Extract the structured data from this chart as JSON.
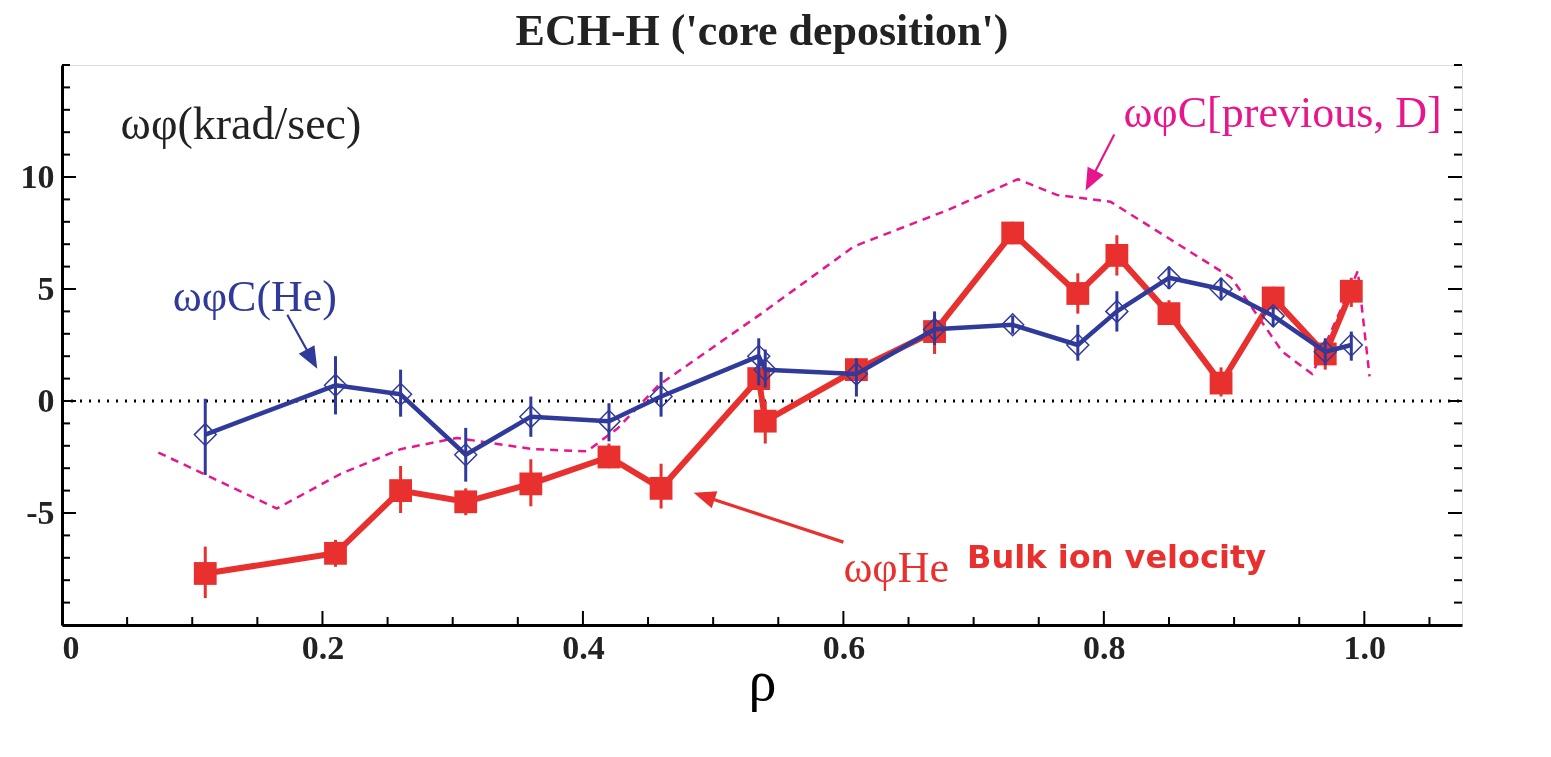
{
  "chart_data": {
    "type": "line",
    "title": "ECH-H ('core deposition')",
    "xlabel": "ρ",
    "ylabel": "ωφ(krad/sec)",
    "xlim": [
      0,
      1.075
    ],
    "ylim": [
      -10,
      15
    ],
    "xticks": [
      0,
      {
        "value": 0.05,
        "label": null
      },
      {
        "value": 0.1,
        "label": null
      },
      {
        "value": 0.15,
        "label": null
      },
      0.2,
      {
        "value": 0.25,
        "label": null
      },
      {
        "value": 0.3,
        "label": null
      },
      {
        "value": 0.35,
        "label": null
      },
      0.4,
      {
        "value": 0.45,
        "label": null
      },
      {
        "value": 0.5,
        "label": null
      },
      {
        "value": 0.55,
        "label": null
      },
      0.6,
      {
        "value": 0.65,
        "label": null
      },
      {
        "value": 0.7,
        "label": null
      },
      {
        "value": 0.75,
        "label": null
      },
      0.8,
      {
        "value": 0.85,
        "label": null
      },
      {
        "value": 0.9,
        "label": null
      },
      {
        "value": 0.95,
        "label": null
      },
      {
        "value": 1,
        "label": "1.0"
      },
      {
        "value": 1.05,
        "label": null
      }
    ],
    "yticks": [
      {
        "value": -10,
        "label": null
      },
      {
        "value": -9,
        "label": null
      },
      {
        "value": -8,
        "label": null
      },
      {
        "value": -7,
        "label": null
      },
      {
        "value": -6,
        "label": null
      },
      -5,
      {
        "value": -4,
        "label": null
      },
      {
        "value": -3,
        "label": null
      },
      {
        "value": -2,
        "label": null
      },
      {
        "value": -1,
        "label": null
      },
      0,
      {
        "value": 1,
        "label": null
      },
      {
        "value": 2,
        "label": null
      },
      {
        "value": 3,
        "label": null
      },
      {
        "value": 4,
        "label": null
      },
      5,
      {
        "value": 6,
        "label": null
      },
      {
        "value": 7,
        "label": null
      },
      {
        "value": 8,
        "label": null
      },
      {
        "value": 9,
        "label": null
      },
      10,
      {
        "value": 11,
        "label": null
      },
      {
        "value": 12,
        "label": null
      },
      {
        "value": 13,
        "label": null
      },
      {
        "value": 14,
        "label": null
      },
      {
        "value": 15,
        "label": null
      }
    ],
    "grid": false,
    "series": [
      {
        "name": "ωφHe",
        "color": "#e8302e",
        "marker": "square",
        "line_style": "solid",
        "x": [
          0.11,
          0.21,
          0.26,
          0.31,
          0.36,
          0.42,
          0.46,
          0.535,
          0.54,
          0.61,
          0.67,
          0.73,
          0.78,
          0.81,
          0.85,
          0.89,
          0.93,
          0.97,
          0.99
        ],
        "values": [
          -7.7,
          -6.8,
          -4.0,
          -4.5,
          -3.7,
          -2.5,
          -3.9,
          1.0,
          -0.9,
          1.4,
          3.1,
          7.5,
          4.8,
          6.5,
          3.9,
          0.8,
          4.6,
          2.1,
          4.9
        ],
        "errors": [
          [
            -8.8,
            -6.5
          ],
          [
            -7.4,
            -6.2
          ],
          [
            -5.0,
            -2.9
          ],
          [
            -5.1,
            -3.9
          ],
          [
            -4.7,
            -2.6
          ],
          [
            -3.0,
            -1.9
          ],
          [
            -4.8,
            -2.8
          ],
          [
            0.5,
            1.5
          ],
          [
            -1.9,
            0.0
          ],
          [
            0.9,
            1.9
          ],
          [
            2.1,
            3.8
          ],
          [
            7.0,
            8.0
          ],
          [
            3.9,
            5.7
          ],
          [
            5.6,
            7.4
          ],
          [
            3.5,
            4.5
          ],
          [
            0.2,
            1.5
          ],
          [
            4.1,
            5.1
          ],
          [
            1.4,
            2.7
          ],
          [
            4.2,
            5.5
          ]
        ]
      },
      {
        "name": "ωφC(He)",
        "color": "#303a9a",
        "marker": "diamond",
        "line_style": "solid",
        "x": [
          0.11,
          0.21,
          0.26,
          0.31,
          0.36,
          0.42,
          0.46,
          0.535,
          0.54,
          0.61,
          0.67,
          0.73,
          0.78,
          0.81,
          0.85,
          0.89,
          0.93,
          0.97,
          0.99
        ],
        "values": [
          -1.5,
          0.7,
          0.3,
          -2.4,
          -0.7,
          -0.9,
          0.2,
          2.0,
          1.4,
          1.2,
          3.2,
          3.4,
          2.5,
          4.0,
          5.5,
          5.0,
          3.8,
          2.2,
          2.5
        ],
        "errors": [
          [
            -3.3,
            0.1
          ],
          [
            -0.6,
            2.0
          ],
          [
            -0.7,
            1.4
          ],
          [
            -3.6,
            -1.2
          ],
          [
            -1.6,
            0.2
          ],
          [
            -1.8,
            -0.1
          ],
          [
            -0.7,
            1.3
          ],
          [
            0.7,
            2.8
          ],
          [
            0.6,
            2.3
          ],
          [
            0.2,
            1.9
          ],
          [
            2.5,
            4.0
          ],
          [
            3.0,
            3.8
          ],
          [
            1.8,
            3.4
          ],
          [
            3.1,
            4.9
          ],
          [
            5.0,
            6.0
          ],
          [
            4.5,
            5.5
          ],
          [
            3.3,
            4.2
          ],
          [
            1.6,
            2.8
          ],
          [
            1.8,
            3.1
          ]
        ]
      },
      {
        "name": "ωφC[previous, D]",
        "color": "#e8168c",
        "marker": "none",
        "line_style": "dashed",
        "x": [
          0.074,
          0.165,
          0.214,
          0.26,
          0.303,
          0.362,
          0.403,
          0.427,
          0.458,
          0.537,
          0.608,
          0.679,
          0.734,
          0.764,
          0.805,
          0.898,
          0.937,
          0.96,
          0.995,
          1.004
        ],
        "values": [
          -2.3,
          -4.8,
          -3.25,
          -2.15,
          -1.65,
          -2.15,
          -2.25,
          -1.2,
          0.7,
          3.9,
          6.9,
          8.5,
          9.9,
          9.2,
          8.9,
          5.5,
          2.2,
          1.2,
          5.8,
          1.1
        ]
      }
    ],
    "ref_lines": [
      {
        "axis": "y",
        "value": 0,
        "color": "#000000",
        "line_style": "dotted"
      }
    ],
    "annotations": [
      "Bulk ion velocity"
    ]
  }
}
